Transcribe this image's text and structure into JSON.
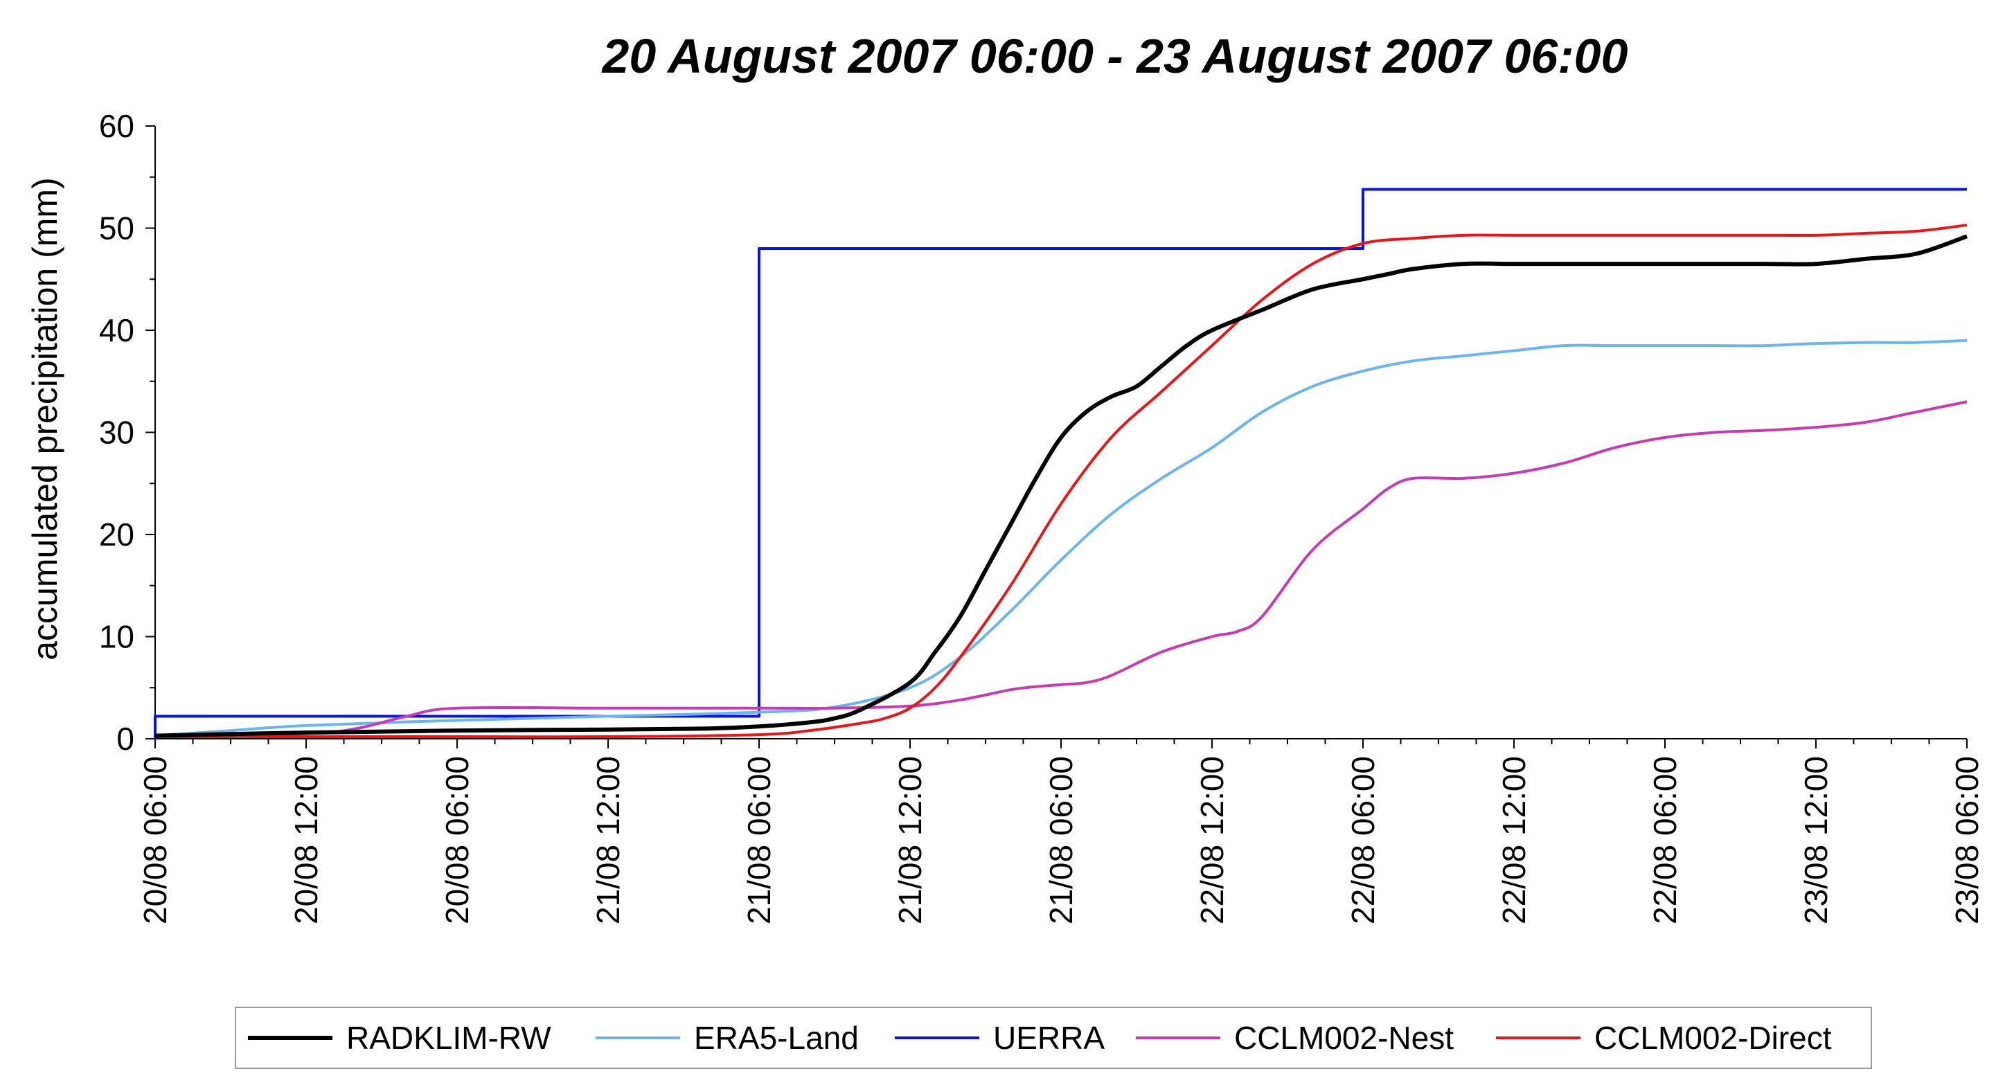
{
  "chart_data": {
    "type": "line",
    "title": "20 August 2007 06:00 - 23 August 2007 06:00",
    "xlabel": "",
    "ylabel": "accumulated precipitation (mm)",
    "ylim": [
      0,
      60
    ],
    "yticks": [
      0,
      10,
      20,
      30,
      40,
      50,
      60
    ],
    "xlim": [
      0,
      72
    ],
    "xtick_hours": [
      0,
      6,
      12,
      18,
      24,
      30,
      36,
      42,
      48,
      54,
      60,
      66,
      72
    ],
    "xtick_labels": [
      "20/08 06:00",
      "20/08 12:00",
      "20/08 06:00",
      "21/08 12:00",
      "21/08 06:00",
      "21/08 12:00",
      "21/08 06:00",
      "22/08 12:00",
      "22/08 06:00",
      "22/08 12:00",
      "22/08 06:00",
      "23/08 12:00",
      "23/08 06:00"
    ],
    "x_unit": "hours since 20/08 06:00",
    "grid": false,
    "legend_position": "bottom",
    "series": [
      {
        "name": "RADKLIM-RW",
        "color": "#000000",
        "width": 6,
        "step": false,
        "x": [
          0,
          6,
          12,
          18,
          22,
          24,
          26,
          27,
          28,
          30,
          31,
          32,
          33,
          34,
          35,
          36,
          37,
          38,
          39,
          40,
          41,
          42,
          44,
          46,
          48,
          49,
          50,
          52,
          54,
          56,
          58,
          60,
          62,
          64,
          66,
          68,
          70,
          72
        ],
        "y": [
          0.3,
          0.6,
          0.8,
          0.9,
          1.0,
          1.2,
          1.6,
          2.0,
          2.8,
          5.5,
          8.5,
          12.0,
          16.5,
          21.0,
          25.5,
          29.5,
          32.0,
          33.5,
          34.5,
          36.5,
          38.5,
          40.0,
          42.0,
          44.0,
          45.0,
          45.5,
          46.0,
          46.5,
          46.5,
          46.5,
          46.5,
          46.5,
          46.5,
          46.5,
          46.5,
          47.0,
          47.5,
          49.2
        ]
      },
      {
        "name": "ERA5-Land",
        "color": "#6CB4EE",
        "width": 4,
        "step": false,
        "x": [
          0,
          3,
          6,
          12,
          18,
          24,
          27,
          30,
          32,
          34,
          36,
          38,
          40,
          42,
          44,
          46,
          48,
          50,
          52,
          54,
          56,
          58,
          60,
          62,
          64,
          66,
          68,
          70,
          72
        ],
        "y": [
          0.3,
          0.8,
          1.3,
          1.8,
          2.2,
          2.6,
          3.1,
          5.0,
          8.0,
          12.5,
          17.5,
          22.0,
          25.5,
          28.5,
          32.0,
          34.5,
          36.0,
          37.0,
          37.5,
          38.0,
          38.5,
          38.5,
          38.5,
          38.5,
          38.5,
          38.7,
          38.8,
          38.8,
          39.0
        ]
      },
      {
        "name": "UERRA",
        "color": "#0A14E0",
        "width": 4,
        "step": true,
        "x": [
          0,
          0,
          24,
          24,
          48,
          48,
          72
        ],
        "y": [
          0,
          2.2,
          2.2,
          48.0,
          48.0,
          53.8,
          53.8
        ]
      },
      {
        "name": "CCLM002-Nest",
        "color": "#C43CB0",
        "width": 4,
        "step": false,
        "x": [
          0,
          6,
          8,
          10,
          12,
          18,
          24,
          27,
          30,
          32,
          34,
          35,
          36,
          37,
          38,
          40,
          42,
          43,
          44,
          46,
          48,
          49,
          50,
          52,
          54,
          56,
          58,
          60,
          62,
          64,
          66,
          68,
          70,
          72
        ],
        "y": [
          0.2,
          0.5,
          1.0,
          2.2,
          3.0,
          3.0,
          3.0,
          3.0,
          3.2,
          3.8,
          4.8,
          5.1,
          5.3,
          5.5,
          6.2,
          8.5,
          10.0,
          10.5,
          12.0,
          18.5,
          22.5,
          24.5,
          25.5,
          25.5,
          26.0,
          27.0,
          28.5,
          29.5,
          30.0,
          30.2,
          30.5,
          31.0,
          32.0,
          33.0
        ]
      },
      {
        "name": "CCLM002-Direct",
        "color": "#E8161A",
        "width": 4,
        "step": false,
        "x": [
          0,
          6,
          12,
          18,
          24,
          26,
          28,
          29,
          30,
          31,
          32,
          34,
          36,
          38,
          40,
          42,
          44,
          46,
          48,
          50,
          52,
          54,
          56,
          58,
          60,
          62,
          64,
          66,
          68,
          70,
          72
        ],
        "y": [
          0.2,
          0.2,
          0.2,
          0.2,
          0.4,
          0.8,
          1.5,
          2.0,
          3.0,
          5.0,
          8.0,
          15.0,
          23.0,
          29.5,
          34.0,
          38.5,
          43.0,
          46.5,
          48.5,
          49.0,
          49.3,
          49.3,
          49.3,
          49.3,
          49.3,
          49.3,
          49.3,
          49.3,
          49.5,
          49.7,
          50.3
        ]
      }
    ]
  }
}
